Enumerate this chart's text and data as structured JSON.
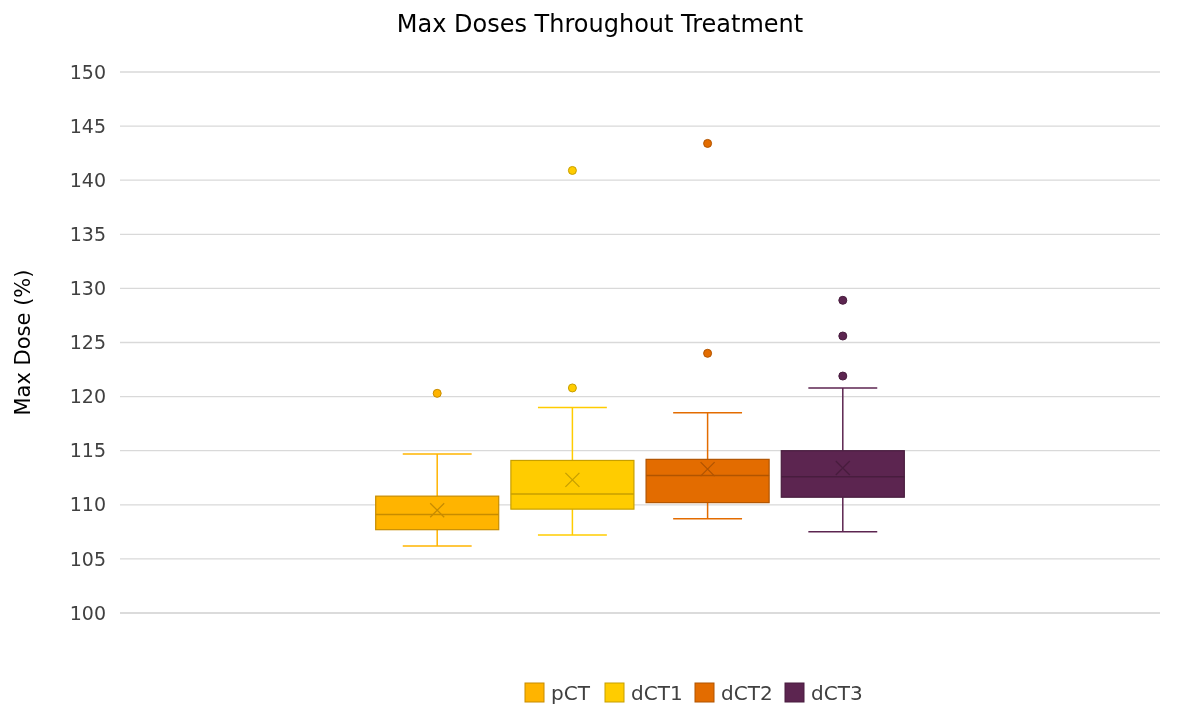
{
  "chart_data": {
    "type": "box",
    "title": "Max Doses Throughout Treatment",
    "ylabel": "Max Dose (%)",
    "categories": [
      null
    ],
    "ylim": [
      100,
      150
    ],
    "yticks": [
      100,
      105,
      110,
      115,
      120,
      125,
      130,
      135,
      140,
      145,
      150
    ],
    "grid": "y",
    "legend": "bottom",
    "series": [
      {
        "name": "pCT",
        "color": "#ffb400",
        "boxes": [
          {
            "low": 106.2,
            "q1": 107.7,
            "median": 109.1,
            "q3": 110.8,
            "high": 114.7,
            "mean": 109.5,
            "outliers": [
              120.3
            ]
          }
        ]
      },
      {
        "name": "dCT1",
        "color": "#ffcc00",
        "boxes": [
          {
            "low": 107.2,
            "q1": 109.6,
            "median": 111.0,
            "q3": 114.1,
            "high": 119.0,
            "mean": 112.3,
            "outliers": [
              120.8,
              140.9
            ]
          }
        ]
      },
      {
        "name": "dCT2",
        "color": "#e36c00",
        "boxes": [
          {
            "low": 108.7,
            "q1": 110.2,
            "median": 112.7,
            "q3": 114.2,
            "high": 118.5,
            "mean": 113.3,
            "outliers": [
              124.0,
              143.4
            ]
          }
        ]
      },
      {
        "name": "dCT3",
        "color": "#5c2550",
        "boxes": [
          {
            "low": 107.5,
            "q1": 110.7,
            "median": 112.6,
            "q3": 115.0,
            "high": 120.8,
            "mean": 113.4,
            "outliers": [
              121.9,
              125.6,
              128.9
            ]
          }
        ]
      }
    ]
  }
}
